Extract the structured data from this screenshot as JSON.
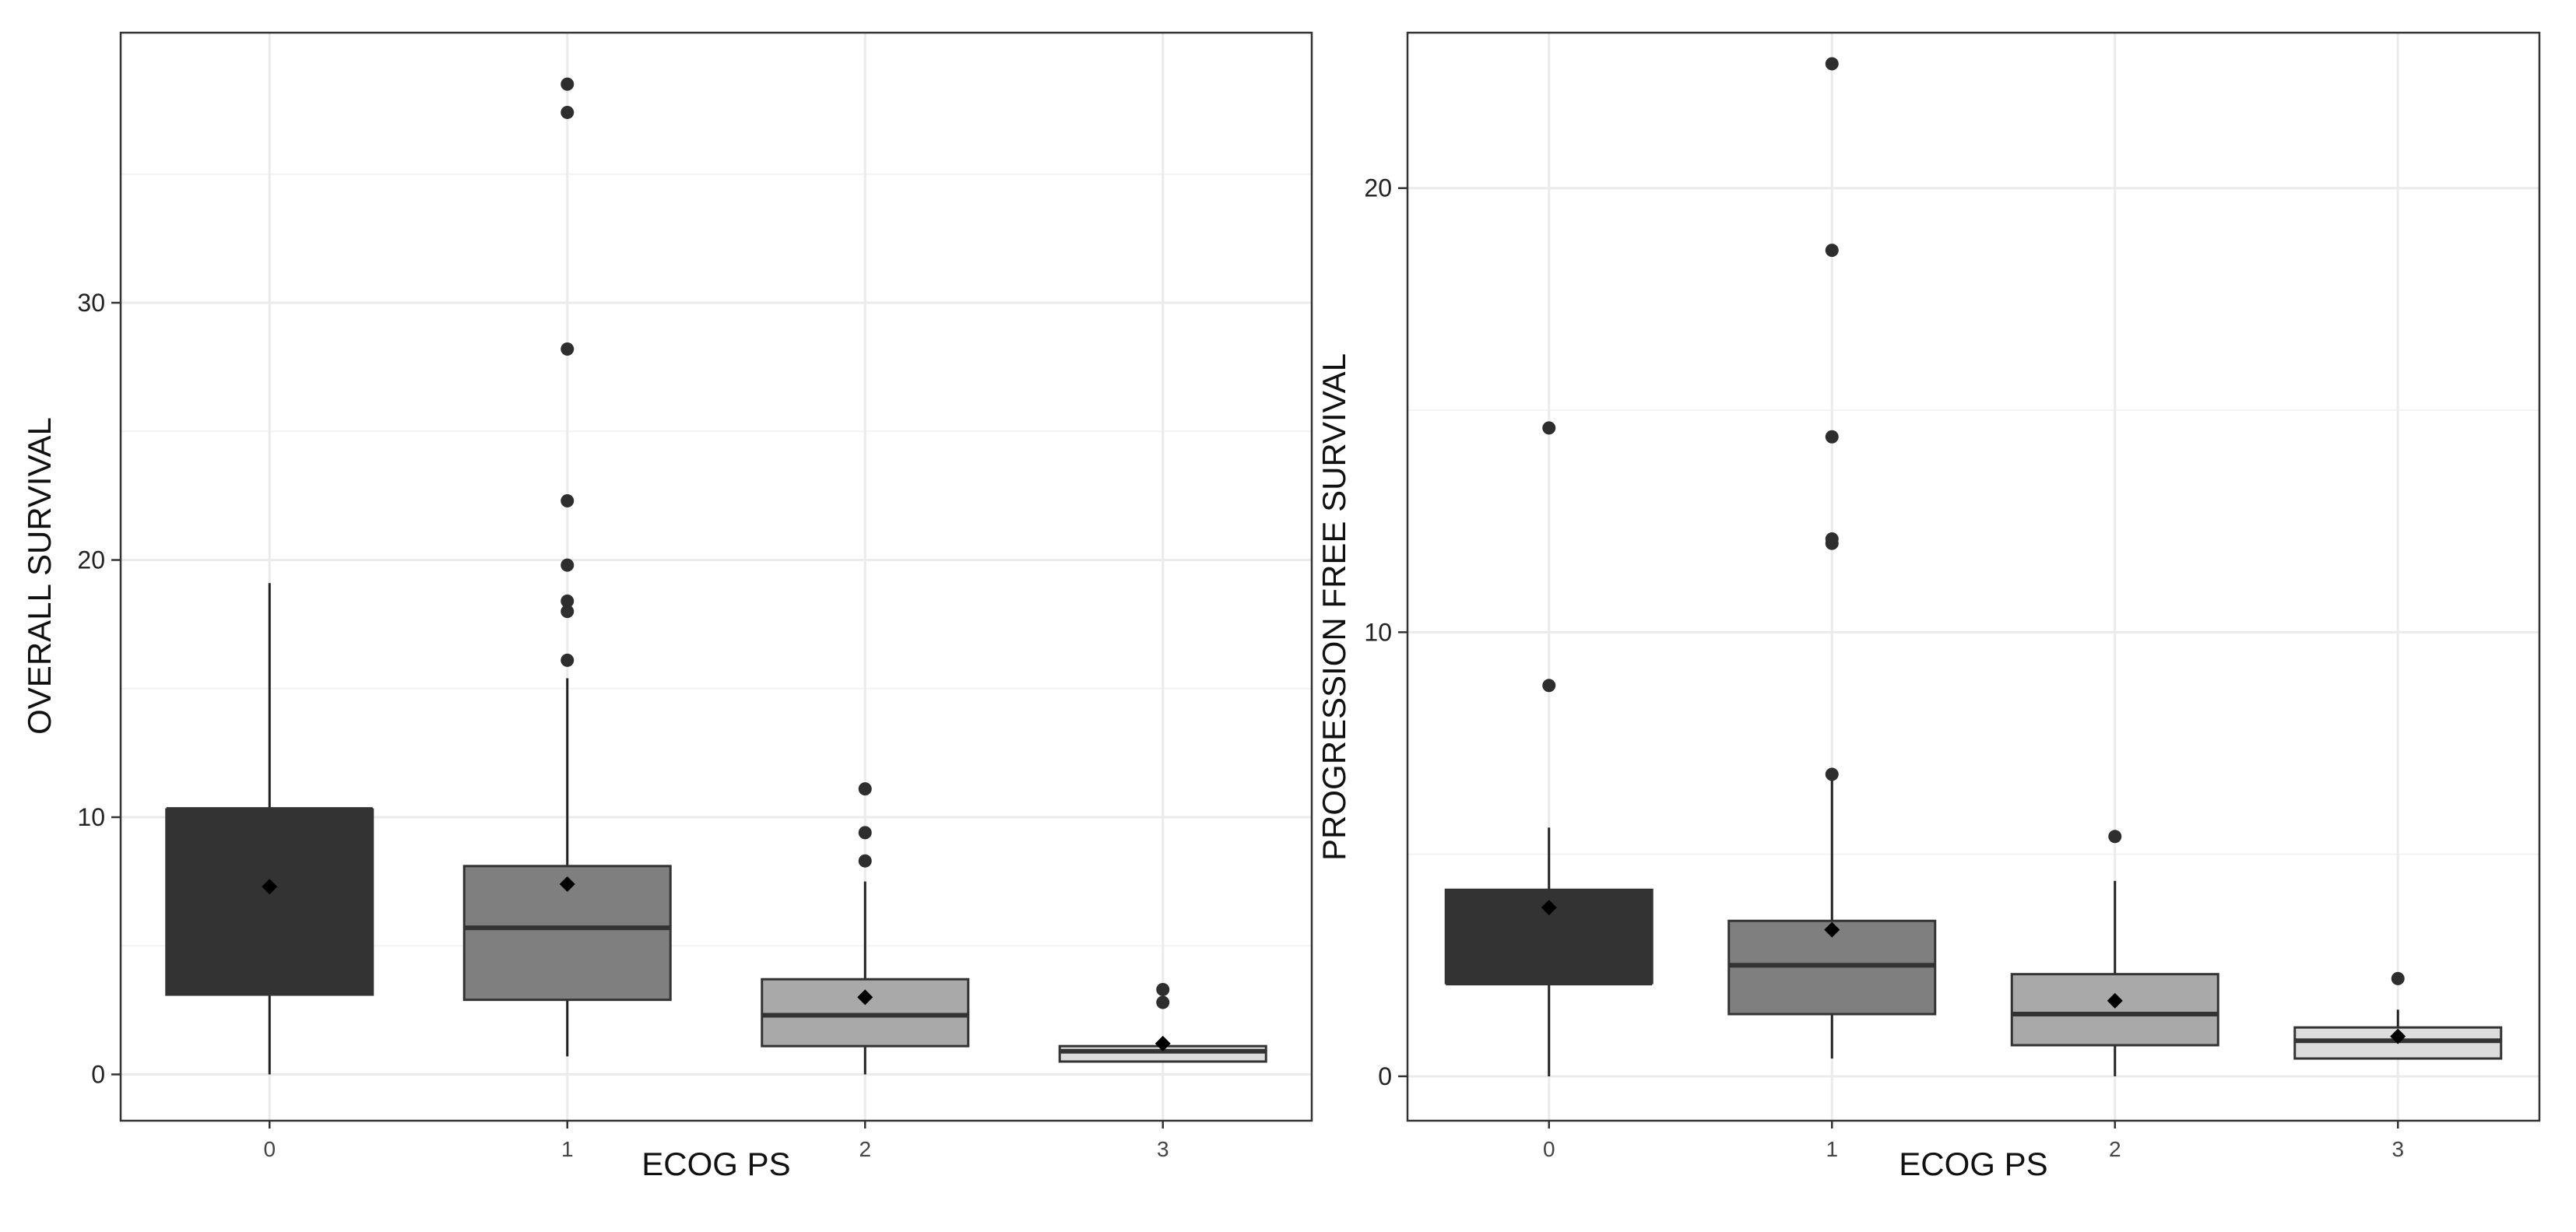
{
  "chart_data": [
    {
      "type": "box",
      "xlabel": "ECOG PS",
      "ylabel": "OVERALL SURVIVAL",
      "categories": [
        "0",
        "1",
        "2",
        "3"
      ],
      "ylim": [
        -1.8,
        40.5
      ],
      "yticks": [
        0,
        10,
        20,
        30
      ],
      "grid": true,
      "box_fills": [
        "#333333",
        "#7f7f7f",
        "#a9a9a9",
        "#dcdcdc"
      ],
      "boxes": [
        {
          "category": "0",
          "whisker_low": 0,
          "q1": 3.1,
          "median": 10.3,
          "q3": 10.3,
          "whisker_high": 19.1,
          "mean": 7.3,
          "outliers": []
        },
        {
          "category": "1",
          "whisker_low": 0.7,
          "q1": 2.9,
          "median": 5.7,
          "q3": 8.1,
          "whisker_high": 15.4,
          "mean": 7.4,
          "outliers": [
            16.1,
            18.0,
            18.4,
            19.8,
            22.3,
            28.2,
            37.4,
            38.5
          ]
        },
        {
          "category": "2",
          "whisker_low": 0,
          "q1": 1.1,
          "median": 2.3,
          "q3": 3.7,
          "whisker_high": 7.5,
          "mean": 3.0,
          "outliers": [
            8.3,
            9.4,
            11.1
          ]
        },
        {
          "category": "3",
          "whisker_low": 0.5,
          "q1": 0.5,
          "median": 0.9,
          "q3": 1.1,
          "whisker_high": 1.1,
          "mean": 1.2,
          "outliers": [
            2.8,
            3.3
          ]
        }
      ]
    },
    {
      "type": "box",
      "xlabel": "ECOG PS",
      "ylabel": "PROGRESSION FREE SURVIVAL",
      "categories": [
        "0",
        "1",
        "2",
        "3"
      ],
      "ylim": [
        -1.0,
        23.5
      ],
      "yticks": [
        0,
        10,
        20
      ],
      "grid": true,
      "box_fills": [
        "#333333",
        "#7f7f7f",
        "#a9a9a9",
        "#dcdcdc"
      ],
      "boxes": [
        {
          "category": "0",
          "whisker_low": 0,
          "q1": 2.1,
          "median": 2.1,
          "q3": 4.2,
          "whisker_high": 5.6,
          "mean": 3.8,
          "outliers": [
            8.8,
            14.6
          ]
        },
        {
          "category": "1",
          "whisker_low": 0.4,
          "q1": 1.4,
          "median": 2.5,
          "q3": 3.5,
          "whisker_high": 6.7,
          "mean": 3.3,
          "outliers": [
            6.8,
            12.0,
            12.1,
            14.4,
            18.6,
            22.8
          ]
        },
        {
          "category": "2",
          "whisker_low": 0,
          "q1": 0.7,
          "median": 1.4,
          "q3": 2.3,
          "whisker_high": 4.4,
          "mean": 1.7,
          "outliers": [
            5.4
          ]
        },
        {
          "category": "3",
          "whisker_low": 0.4,
          "q1": 0.4,
          "median": 0.8,
          "q3": 1.1,
          "whisker_high": 1.5,
          "mean": 0.9,
          "outliers": [
            2.2
          ]
        }
      ]
    }
  ]
}
